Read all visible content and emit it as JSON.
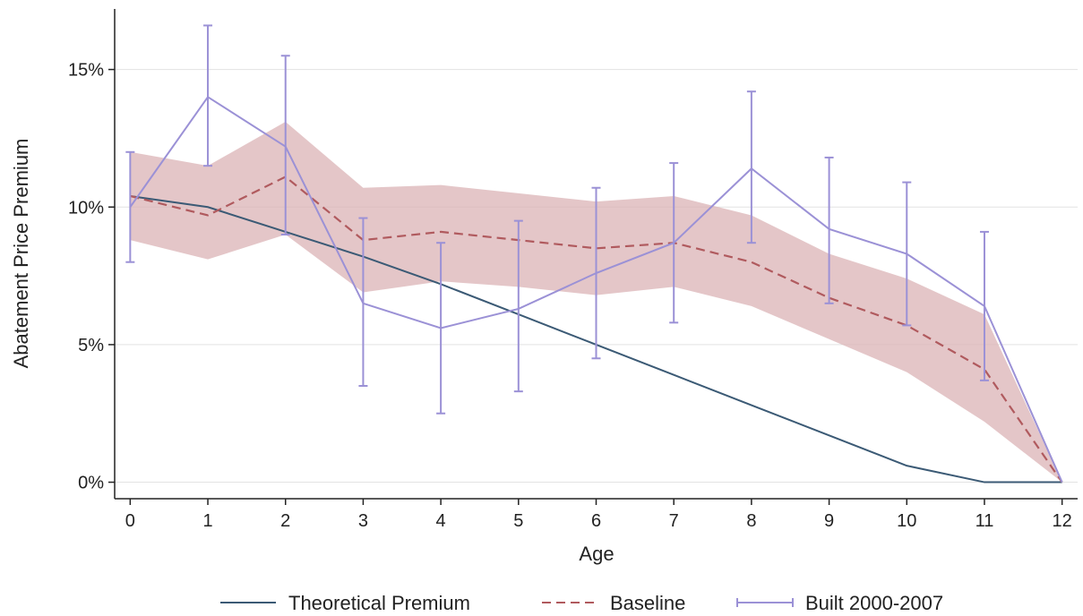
{
  "chart_data": {
    "type": "line",
    "xlabel": "Age",
    "ylabel": "Abatement Price Premium",
    "x_ticks": [
      "0",
      "1",
      "2",
      "3",
      "4",
      "5",
      "6",
      "7",
      "8",
      "9",
      "10",
      "11",
      "12"
    ],
    "y_ticks": [
      {
        "value": 0,
        "label": "0%"
      },
      {
        "value": 5,
        "label": "5%"
      },
      {
        "value": 10,
        "label": "10%"
      },
      {
        "value": 15,
        "label": "15%"
      }
    ],
    "xlim": [
      -0.2,
      12.2
    ],
    "ylim": [
      -0.6,
      17.2
    ],
    "grid": "horizontal",
    "legend_position": "bottom",
    "x": [
      0,
      1,
      2,
      3,
      4,
      5,
      6,
      7,
      8,
      9,
      10,
      11,
      12
    ],
    "series": [
      {
        "name": "Theoretical Premium",
        "style": "solid",
        "color": "#3b5a75",
        "values": [
          10.4,
          10.0,
          9.1,
          8.2,
          7.2,
          6.1,
          5.0,
          3.9,
          2.8,
          1.7,
          0.6,
          0.0,
          0.0
        ]
      },
      {
        "name": "Baseline",
        "style": "dashed",
        "color": "#b05a5e",
        "values": [
          10.4,
          9.7,
          11.1,
          8.8,
          9.1,
          8.8,
          8.5,
          8.7,
          8.0,
          6.7,
          5.7,
          4.1,
          0.0
        ],
        "ci_lower": [
          8.8,
          8.1,
          9.0,
          6.9,
          7.3,
          7.1,
          6.8,
          7.1,
          6.4,
          5.2,
          4.0,
          2.2,
          0.0
        ],
        "ci_upper": [
          12.0,
          11.5,
          13.1,
          10.7,
          10.8,
          10.5,
          10.2,
          10.4,
          9.7,
          8.3,
          7.4,
          6.1,
          0.0
        ]
      },
      {
        "name": "Built 2000-2007",
        "style": "solid-errorbars",
        "color": "#9b91d6",
        "values": [
          10.0,
          14.0,
          12.2,
          6.5,
          5.6,
          6.3,
          7.6,
          8.7,
          11.4,
          9.2,
          8.3,
          6.4,
          0.0
        ],
        "err_lower": [
          8.0,
          11.5,
          9.0,
          3.5,
          2.5,
          3.3,
          4.5,
          5.8,
          8.7,
          6.5,
          5.7,
          3.7,
          0.0
        ],
        "err_upper": [
          12.0,
          16.6,
          15.5,
          9.6,
          8.7,
          9.5,
          10.7,
          11.6,
          14.2,
          11.8,
          10.9,
          9.1,
          0.0
        ]
      }
    ],
    "colors": {
      "ci_fill": "#dbb3b5",
      "grid": "#e3e3e3",
      "axis": "#222222"
    }
  }
}
